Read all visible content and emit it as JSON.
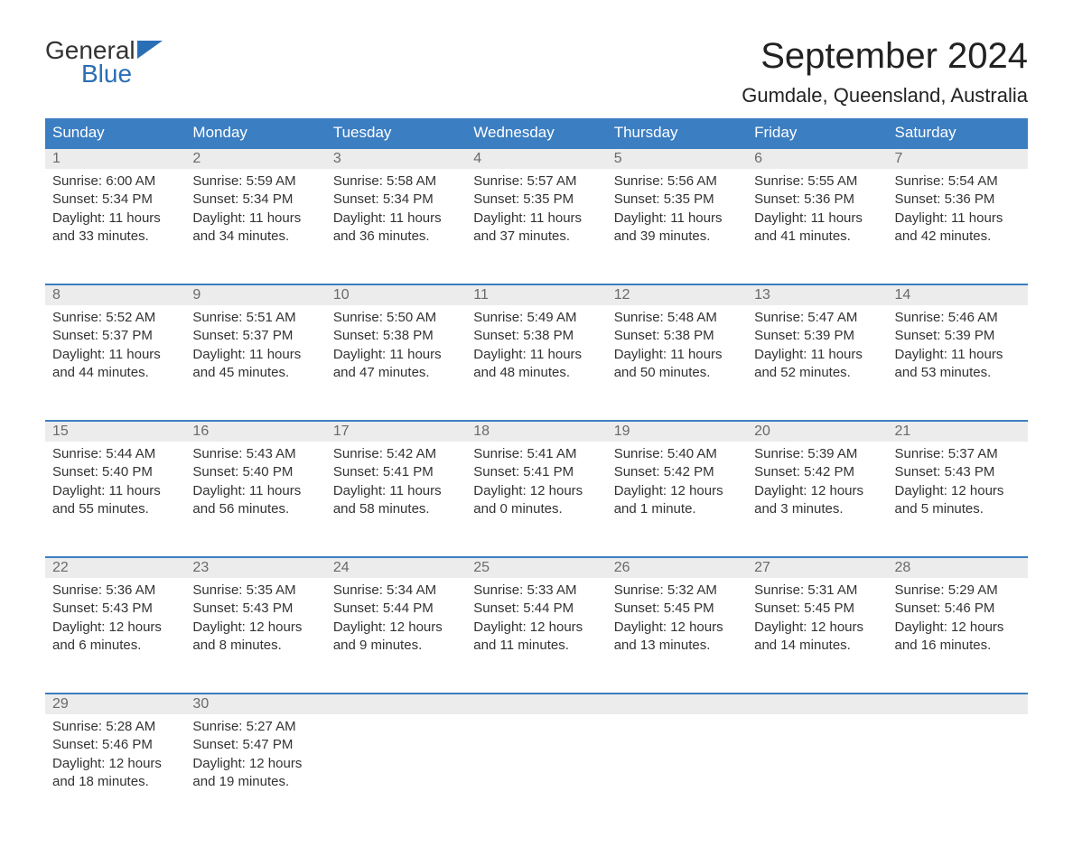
{
  "logo": {
    "word1": "General",
    "word2": "Blue",
    "flag_color": "#2a6fb5",
    "text_color": "#333"
  },
  "header": {
    "title": "September 2024",
    "location": "Gumdale, Queensland, Australia"
  },
  "colors": {
    "header_bg": "#3b7ec2",
    "header_text": "#ffffff",
    "daynum_bg": "#ececec",
    "daynum_text": "#6a6a6a",
    "body_text": "#333",
    "row_border": "#3b7ec2",
    "page_bg": "#ffffff"
  },
  "fonts": {
    "title_size_pt": 30,
    "location_size_pt": 17,
    "dayhead_size_pt": 13,
    "body_size_pt": 11
  },
  "calendar": {
    "type": "table",
    "columns": [
      "Sunday",
      "Monday",
      "Tuesday",
      "Wednesday",
      "Thursday",
      "Friday",
      "Saturday"
    ],
    "weeks": [
      [
        {
          "day": "1",
          "sunrise": "Sunrise: 6:00 AM",
          "sunset": "Sunset: 5:34 PM",
          "daylight": "Daylight: 11 hours and 33 minutes."
        },
        {
          "day": "2",
          "sunrise": "Sunrise: 5:59 AM",
          "sunset": "Sunset: 5:34 PM",
          "daylight": "Daylight: 11 hours and 34 minutes."
        },
        {
          "day": "3",
          "sunrise": "Sunrise: 5:58 AM",
          "sunset": "Sunset: 5:34 PM",
          "daylight": "Daylight: 11 hours and 36 minutes."
        },
        {
          "day": "4",
          "sunrise": "Sunrise: 5:57 AM",
          "sunset": "Sunset: 5:35 PM",
          "daylight": "Daylight: 11 hours and 37 minutes."
        },
        {
          "day": "5",
          "sunrise": "Sunrise: 5:56 AM",
          "sunset": "Sunset: 5:35 PM",
          "daylight": "Daylight: 11 hours and 39 minutes."
        },
        {
          "day": "6",
          "sunrise": "Sunrise: 5:55 AM",
          "sunset": "Sunset: 5:36 PM",
          "daylight": "Daylight: 11 hours and 41 minutes."
        },
        {
          "day": "7",
          "sunrise": "Sunrise: 5:54 AM",
          "sunset": "Sunset: 5:36 PM",
          "daylight": "Daylight: 11 hours and 42 minutes."
        }
      ],
      [
        {
          "day": "8",
          "sunrise": "Sunrise: 5:52 AM",
          "sunset": "Sunset: 5:37 PM",
          "daylight": "Daylight: 11 hours and 44 minutes."
        },
        {
          "day": "9",
          "sunrise": "Sunrise: 5:51 AM",
          "sunset": "Sunset: 5:37 PM",
          "daylight": "Daylight: 11 hours and 45 minutes."
        },
        {
          "day": "10",
          "sunrise": "Sunrise: 5:50 AM",
          "sunset": "Sunset: 5:38 PM",
          "daylight": "Daylight: 11 hours and 47 minutes."
        },
        {
          "day": "11",
          "sunrise": "Sunrise: 5:49 AM",
          "sunset": "Sunset: 5:38 PM",
          "daylight": "Daylight: 11 hours and 48 minutes."
        },
        {
          "day": "12",
          "sunrise": "Sunrise: 5:48 AM",
          "sunset": "Sunset: 5:38 PM",
          "daylight": "Daylight: 11 hours and 50 minutes."
        },
        {
          "day": "13",
          "sunrise": "Sunrise: 5:47 AM",
          "sunset": "Sunset: 5:39 PM",
          "daylight": "Daylight: 11 hours and 52 minutes."
        },
        {
          "day": "14",
          "sunrise": "Sunrise: 5:46 AM",
          "sunset": "Sunset: 5:39 PM",
          "daylight": "Daylight: 11 hours and 53 minutes."
        }
      ],
      [
        {
          "day": "15",
          "sunrise": "Sunrise: 5:44 AM",
          "sunset": "Sunset: 5:40 PM",
          "daylight": "Daylight: 11 hours and 55 minutes."
        },
        {
          "day": "16",
          "sunrise": "Sunrise: 5:43 AM",
          "sunset": "Sunset: 5:40 PM",
          "daylight": "Daylight: 11 hours and 56 minutes."
        },
        {
          "day": "17",
          "sunrise": "Sunrise: 5:42 AM",
          "sunset": "Sunset: 5:41 PM",
          "daylight": "Daylight: 11 hours and 58 minutes."
        },
        {
          "day": "18",
          "sunrise": "Sunrise: 5:41 AM",
          "sunset": "Sunset: 5:41 PM",
          "daylight": "Daylight: 12 hours and 0 minutes."
        },
        {
          "day": "19",
          "sunrise": "Sunrise: 5:40 AM",
          "sunset": "Sunset: 5:42 PM",
          "daylight": "Daylight: 12 hours and 1 minute."
        },
        {
          "day": "20",
          "sunrise": "Sunrise: 5:39 AM",
          "sunset": "Sunset: 5:42 PM",
          "daylight": "Daylight: 12 hours and 3 minutes."
        },
        {
          "day": "21",
          "sunrise": "Sunrise: 5:37 AM",
          "sunset": "Sunset: 5:43 PM",
          "daylight": "Daylight: 12 hours and 5 minutes."
        }
      ],
      [
        {
          "day": "22",
          "sunrise": "Sunrise: 5:36 AM",
          "sunset": "Sunset: 5:43 PM",
          "daylight": "Daylight: 12 hours and 6 minutes."
        },
        {
          "day": "23",
          "sunrise": "Sunrise: 5:35 AM",
          "sunset": "Sunset: 5:43 PM",
          "daylight": "Daylight: 12 hours and 8 minutes."
        },
        {
          "day": "24",
          "sunrise": "Sunrise: 5:34 AM",
          "sunset": "Sunset: 5:44 PM",
          "daylight": "Daylight: 12 hours and 9 minutes."
        },
        {
          "day": "25",
          "sunrise": "Sunrise: 5:33 AM",
          "sunset": "Sunset: 5:44 PM",
          "daylight": "Daylight: 12 hours and 11 minutes."
        },
        {
          "day": "26",
          "sunrise": "Sunrise: 5:32 AM",
          "sunset": "Sunset: 5:45 PM",
          "daylight": "Daylight: 12 hours and 13 minutes."
        },
        {
          "day": "27",
          "sunrise": "Sunrise: 5:31 AM",
          "sunset": "Sunset: 5:45 PM",
          "daylight": "Daylight: 12 hours and 14 minutes."
        },
        {
          "day": "28",
          "sunrise": "Sunrise: 5:29 AM",
          "sunset": "Sunset: 5:46 PM",
          "daylight": "Daylight: 12 hours and 16 minutes."
        }
      ],
      [
        {
          "day": "29",
          "sunrise": "Sunrise: 5:28 AM",
          "sunset": "Sunset: 5:46 PM",
          "daylight": "Daylight: 12 hours and 18 minutes."
        },
        {
          "day": "30",
          "sunrise": "Sunrise: 5:27 AM",
          "sunset": "Sunset: 5:47 PM",
          "daylight": "Daylight: 12 hours and 19 minutes."
        },
        null,
        null,
        null,
        null,
        null
      ]
    ]
  }
}
